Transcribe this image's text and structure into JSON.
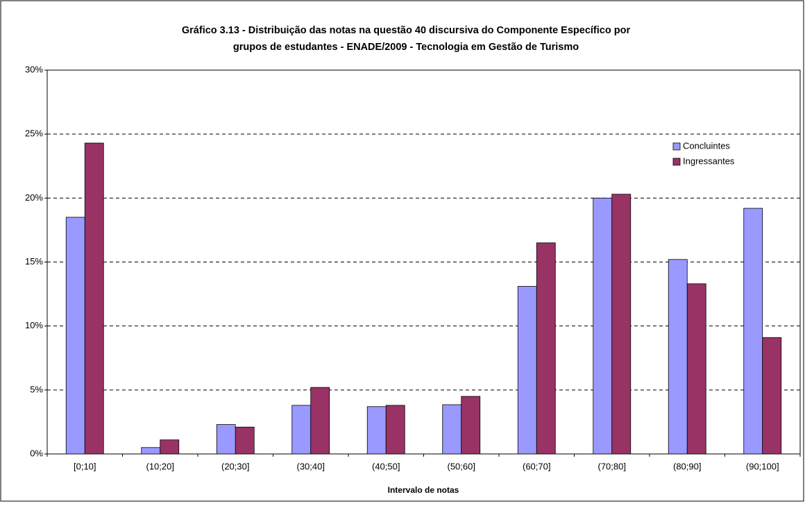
{
  "chart_data": {
    "type": "bar",
    "title": "Gráfico 3.13 - Distribuição das notas na questão 40 discursiva do Componente Específico por",
    "subtitle": "grupos de estudantes - ENADE/2009 - Tecnologia em Gestão de Turismo",
    "x_label": "Intervalo de notas",
    "categories": [
      "[0;10]",
      "(10;20]",
      "(20;30]",
      "(30;40]",
      "(40;50]",
      "(50;60]",
      "(60;70]",
      "(70;80]",
      "(80;90]",
      "(90;100]"
    ],
    "series": [
      {
        "name": "Concluintes",
        "color": "#9999ff",
        "values": [
          18.5,
          0.5,
          2.3,
          3.8,
          3.7,
          3.85,
          13.1,
          20.0,
          15.2,
          19.2
        ]
      },
      {
        "name": "Ingressantes",
        "color": "#993366",
        "values": [
          24.3,
          1.1,
          2.1,
          5.2,
          3.8,
          4.5,
          16.5,
          20.3,
          13.3,
          9.1
        ]
      }
    ],
    "ylim": [
      0,
      30
    ],
    "yticks": [
      {
        "value": 0,
        "label": "0%"
      },
      {
        "value": 5,
        "label": "5%"
      },
      {
        "value": 10,
        "label": "10%"
      },
      {
        "value": 15,
        "label": "15%"
      },
      {
        "value": 20,
        "label": "20%"
      },
      {
        "value": 25,
        "label": "25%"
      },
      {
        "value": 30,
        "label": "30%"
      }
    ],
    "grid": true,
    "legend": "upper right"
  }
}
